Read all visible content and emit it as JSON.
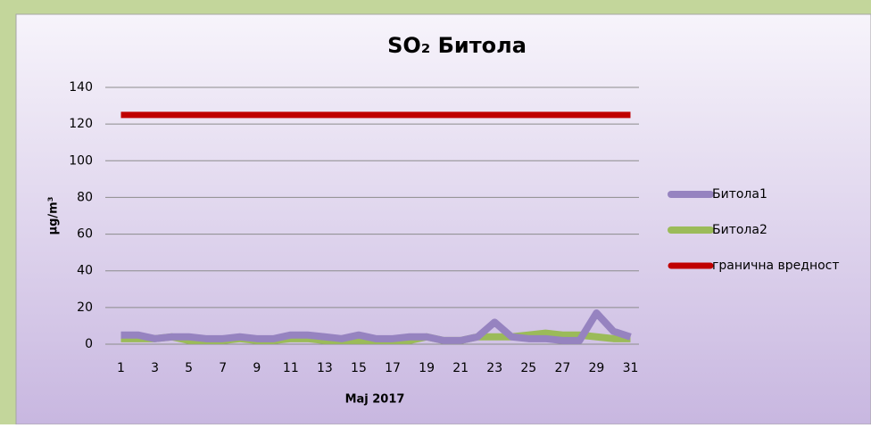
{
  "chart_data": {
    "type": "line",
    "title": "SO₂ Битола",
    "xlabel": "Мај 2017",
    "ylabel": "μg/m³",
    "categories": [
      "1",
      null,
      "3",
      null,
      "5",
      null,
      "7",
      null,
      "9",
      null,
      "11",
      null,
      "13",
      null,
      "15",
      null,
      "17",
      null,
      "19",
      null,
      "21",
      null,
      "23",
      null,
      "25",
      null,
      "27",
      null,
      "29",
      null,
      "31"
    ],
    "series": [
      {
        "name": "Битола1",
        "color": "#9683c0",
        "values": [
          5,
          5,
          3,
          4,
          4,
          3,
          3,
          4,
          3,
          3,
          5,
          5,
          4,
          3,
          5,
          3,
          3,
          4,
          4,
          2,
          2,
          4,
          12,
          4,
          3,
          3,
          2,
          2,
          17,
          7,
          4
        ]
      },
      {
        "name": "Битола2",
        "color": "#9bbb59",
        "values": [
          3,
          3,
          3,
          4,
          2,
          2,
          2,
          3,
          2,
          2,
          3,
          3,
          2,
          2,
          2,
          2,
          2,
          2,
          4,
          2,
          2,
          4,
          4,
          4,
          5,
          6,
          5,
          5,
          4,
          3,
          3
        ]
      },
      {
        "name": "гранична вредност",
        "color": "#c00000",
        "values": [
          125,
          125,
          125,
          125,
          125,
          125,
          125,
          125,
          125,
          125,
          125,
          125,
          125,
          125,
          125,
          125,
          125,
          125,
          125,
          125,
          125,
          125,
          125,
          125,
          125,
          125,
          125,
          125,
          125,
          125,
          125
        ]
      }
    ],
    "ylim": [
      0,
      140
    ],
    "yticks": [
      0,
      20,
      40,
      60,
      80,
      100,
      120,
      140
    ],
    "grid": true,
    "legend": "right"
  }
}
